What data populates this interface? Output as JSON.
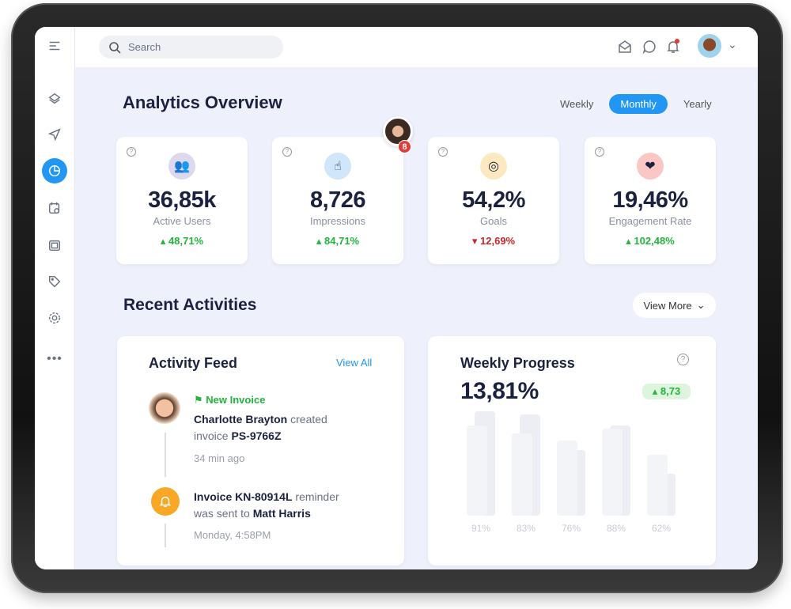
{
  "header": {
    "search_placeholder": "Search",
    "icons": [
      "mail-open-icon",
      "chat-icon",
      "bell-icon"
    ],
    "notification_dot_color": "#e53935"
  },
  "sidebar": {
    "items": [
      "menu-icon",
      "layers-icon",
      "send-icon",
      "pie-chart-icon",
      "calendar-clock-icon",
      "camera-icon",
      "tag-icon",
      "settings-icon",
      "more-icon"
    ],
    "active": "pie-chart-icon",
    "accent": "#2196f3"
  },
  "overview": {
    "title": "Analytics Overview",
    "tabs": [
      "Weekly",
      "Monthly",
      "Yearly"
    ],
    "selected_tab": "Monthly",
    "avatar_badge": "8"
  },
  "kpis": [
    {
      "value": "36,85k",
      "label": "Active Users",
      "change": "48,71%",
      "trend": "up",
      "icon": "users-icon",
      "icon_bg": "#ddd8ee"
    },
    {
      "value": "8,726",
      "label": "Impressions",
      "change": "84,71%",
      "trend": "up",
      "icon": "tap-icon",
      "icon_bg": "#cfe6fb"
    },
    {
      "value": "54,2%",
      "label": "Goals",
      "change": "12,69%",
      "trend": "down",
      "icon": "target-icon",
      "icon_bg": "#fde9c0"
    },
    {
      "value": "19,46%",
      "label": "Engagement Rate",
      "change": "102,48%",
      "trend": "up",
      "icon": "heart-icon",
      "icon_bg": "#fbc7c4"
    }
  ],
  "recent": {
    "title": "Recent Activities",
    "view_more": "View More"
  },
  "feed": {
    "title": "Activity Feed",
    "view_all": "View All",
    "item1": {
      "tag": "New Invoice",
      "name": "Charlotte Brayton",
      "verb": "created",
      "line2": "invoice",
      "invoice": "PS-9766Z",
      "time": "34  min ago"
    },
    "item2": {
      "prefix": "Invoice",
      "invoice": "KN-80914L",
      "verb": "reminder",
      "line2": "was sent to",
      "name": "Matt Harris",
      "time": "Monday, 4:58PM"
    }
  },
  "chart_data": {
    "type": "bar",
    "title": "Weekly Progress",
    "value": "13,81%",
    "change": "8,73",
    "trend": "up",
    "categories": [
      "91%",
      "83%",
      "76%",
      "88%",
      "62%"
    ],
    "values": [
      91,
      83,
      76,
      88,
      62
    ]
  }
}
